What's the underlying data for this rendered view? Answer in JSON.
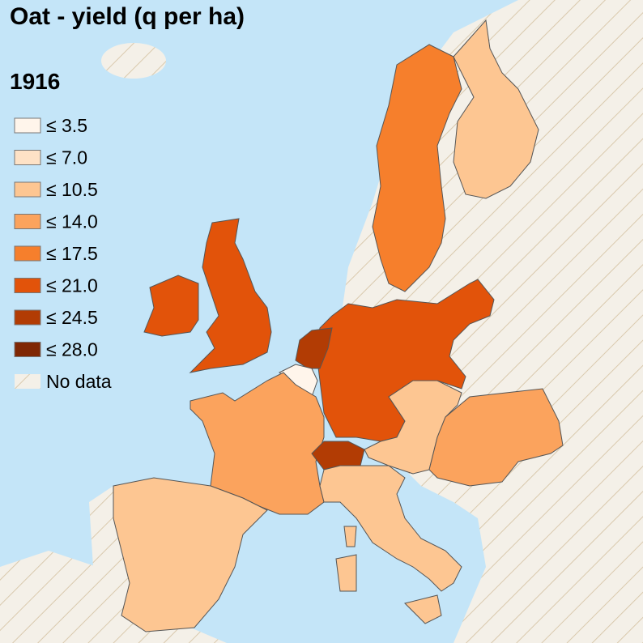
{
  "title": "Oat - yield (q per ha)",
  "year": "1916",
  "legend": [
    {
      "label": "≤ 3.5",
      "color": "#fff5eb"
    },
    {
      "label": "≤ 7.0",
      "color": "#fee2c6"
    },
    {
      "label": "≤ 10.5",
      "color": "#fdc692"
    },
    {
      "label": "≤ 14.0",
      "color": "#fba35d"
    },
    {
      "label": "≤ 17.5",
      "color": "#f67f2c"
    },
    {
      "label": "≤ 21.0",
      "color": "#e2530a"
    },
    {
      "label": "≤ 24.5",
      "color": "#b23c04"
    },
    {
      "label": "≤ 28.0",
      "color": "#7f2704"
    },
    {
      "label": "No data",
      "color": "#f4f0e8"
    }
  ]
}
